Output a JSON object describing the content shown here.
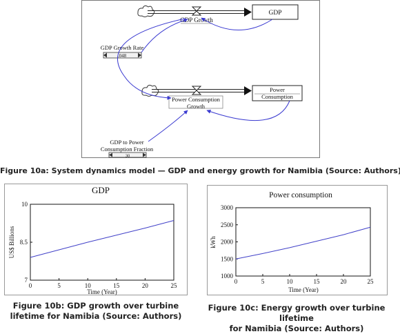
{
  "figure_a": {
    "nodes": {
      "gdp_stock": "GDP",
      "gdp_growth": "GDP Growth",
      "gdp_growth_rate": "GDP Growth Rate",
      "gdp_growth_rate_value": ".048",
      "power_stock_line1": "Power",
      "power_stock_line2": "Consumption",
      "power_growth_line1": "Power Consumption",
      "power_growth_line2": "Growth",
      "fraction_line1": "GDP to Power",
      "fraction_line2": "Consumption Fraction",
      "fraction_value": "30"
    },
    "caption": "Figure 10a: System dynamics model — GDP and energy growth for Namibia (Source: Authors)"
  },
  "figure_b": {
    "caption_line1": "Figure 10b: GDP growth over turbine",
    "caption_line2": "lifetime for Namibia (Source: Authors)"
  },
  "figure_c": {
    "caption_line1": "Figure 10c: Energy growth over turbine lifetime",
    "caption_line2": "for Namibia (Source: Authors)"
  },
  "chart_data": [
    {
      "type": "line",
      "title": "GDP",
      "xlabel": "Time (Year)",
      "ylabel": "US$ Billions",
      "xlim": [
        0,
        25
      ],
      "ylim": [
        7,
        10
      ],
      "x_ticks": [
        0,
        5,
        10,
        15,
        20,
        25
      ],
      "y_ticks": [
        7,
        8.5,
        10
      ],
      "y_tick_labels": [
        "7",
        "8.5",
        "10"
      ],
      "grid": false,
      "color": "#4040c8",
      "series": [
        {
          "x": [
            0,
            5,
            10,
            15,
            20,
            25
          ],
          "values": [
            7.9,
            8.2,
            8.5,
            8.78,
            9.06,
            9.36
          ]
        }
      ]
    },
    {
      "type": "line",
      "title": "Power consumption",
      "xlabel": "Time (Year)",
      "ylabel": "kWh",
      "xlim": [
        0,
        25
      ],
      "ylim": [
        1000,
        3000
      ],
      "x_ticks": [
        0,
        5,
        10,
        15,
        20,
        25
      ],
      "y_ticks": [
        1000,
        1500,
        2000,
        2500,
        3000
      ],
      "y_tick_labels": [
        "1000",
        "1500",
        "2000",
        "2500",
        "3000"
      ],
      "grid": false,
      "color": "#4040c8",
      "series": [
        {
          "x": [
            0,
            5,
            10,
            15,
            20,
            25
          ],
          "values": [
            1500,
            1660,
            1830,
            2020,
            2210,
            2430
          ]
        }
      ]
    }
  ]
}
